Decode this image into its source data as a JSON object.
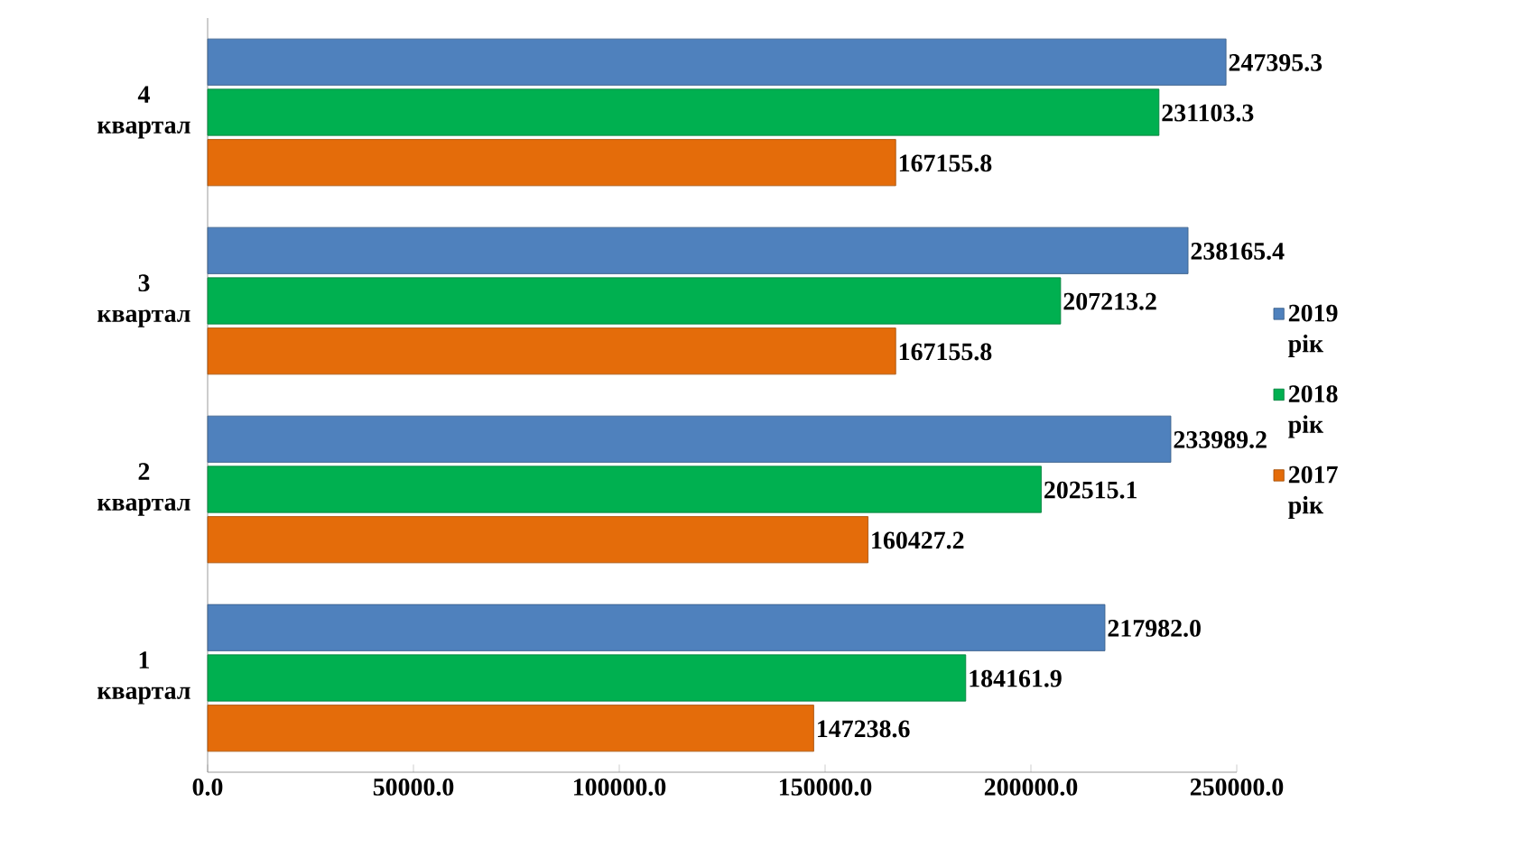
{
  "chart_data": {
    "type": "bar",
    "orientation": "horizontal",
    "categories": [
      "4 квартал",
      "3 квартал",
      "2 квартал",
      "1 квартал"
    ],
    "series": [
      {
        "name": "2019 рік",
        "color": "#4f81bd",
        "values": [
          247395.3,
          238165.4,
          233989.2,
          217982.0
        ],
        "value_labels": [
          "247395.3",
          "238165.4",
          "233989.2",
          "217982.0"
        ]
      },
      {
        "name": "2018 рік",
        "color": "#00b050",
        "values": [
          231103.3,
          207213.2,
          202515.1,
          184161.9
        ],
        "value_labels": [
          "231103.3",
          "207213.2",
          "202515.1",
          "184161.9"
        ]
      },
      {
        "name": "2017 рік",
        "color": "#e46c0a",
        "values": [
          167155.8,
          167155.8,
          160427.2,
          147238.6
        ],
        "value_labels": [
          "167155.8",
          "167155.8",
          "160427.2",
          "147238.6"
        ]
      }
    ],
    "xlim": [
      0,
      250000
    ],
    "xticks": [
      {
        "value": 0,
        "label": "0.0"
      },
      {
        "value": 50000,
        "label": "50000.0"
      },
      {
        "value": 100000,
        "label": "100000.0"
      },
      {
        "value": 150000,
        "label": "150000.0"
      },
      {
        "value": 200000,
        "label": "200000.0"
      },
      {
        "value": 250000,
        "label": "250000.0"
      }
    ],
    "legend": "right",
    "grid": false
  }
}
